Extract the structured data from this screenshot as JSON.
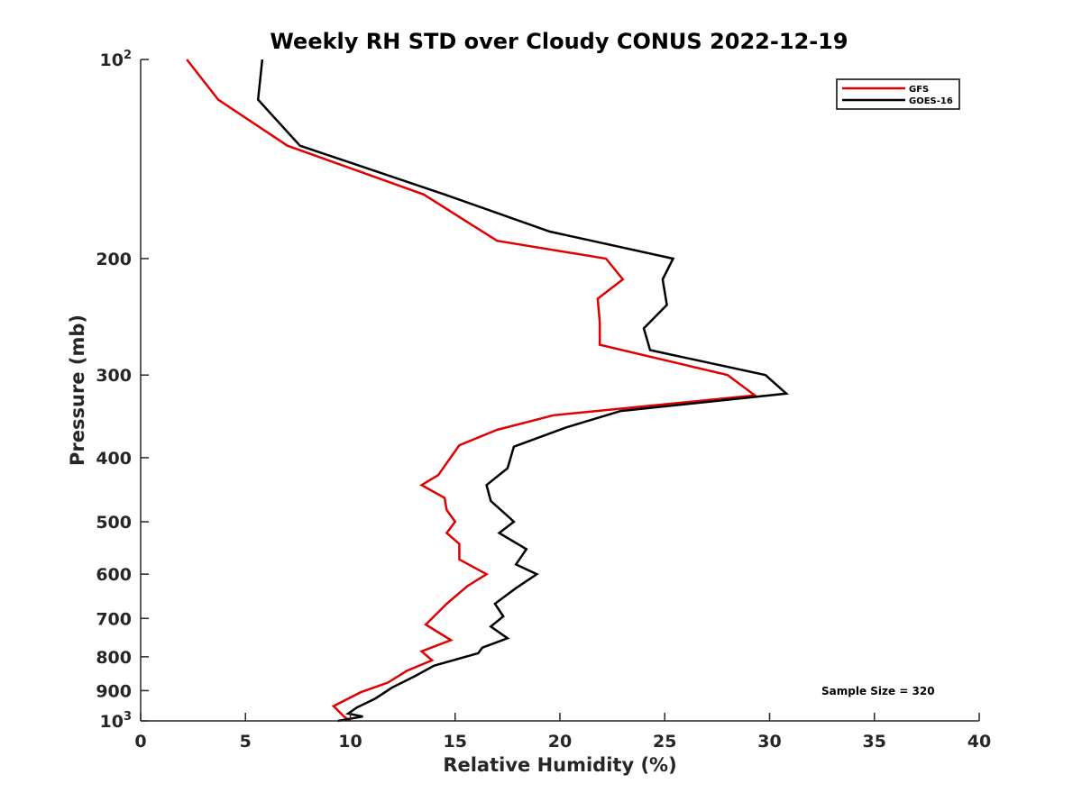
{
  "chart_data": {
    "type": "line",
    "title": "Weekly RH STD over Cloudy CONUS 2022-12-19",
    "xlabel": "Relative Humidity (%)",
    "ylabel": "Pressure (mb)",
    "xlim": [
      0,
      40
    ],
    "ylim": [
      100,
      1000
    ],
    "yscale": "log",
    "y_reversed": true,
    "grid": false,
    "legend_position": "top-right",
    "x_ticks": [
      {
        "value": 0,
        "label": "0"
      },
      {
        "value": 5,
        "label": "5"
      },
      {
        "value": 10,
        "label": "10"
      },
      {
        "value": 15,
        "label": "15"
      },
      {
        "value": 20,
        "label": "20"
      },
      {
        "value": 25,
        "label": "25"
      },
      {
        "value": 30,
        "label": "30"
      },
      {
        "value": 35,
        "label": "35"
      },
      {
        "value": 40,
        "label": "40"
      }
    ],
    "y_ticks": [
      {
        "value": 100,
        "base": "10",
        "exp": "2"
      },
      {
        "value": 200,
        "base": "200",
        "exp": ""
      },
      {
        "value": 300,
        "base": "300",
        "exp": ""
      },
      {
        "value": 400,
        "base": "400",
        "exp": ""
      },
      {
        "value": 500,
        "base": "500",
        "exp": ""
      },
      {
        "value": 600,
        "base": "600",
        "exp": ""
      },
      {
        "value": 700,
        "base": "700",
        "exp": ""
      },
      {
        "value": 800,
        "base": "800",
        "exp": ""
      },
      {
        "value": 900,
        "base": "900",
        "exp": ""
      },
      {
        "value": 1000,
        "base": "10",
        "exp": "3"
      }
    ],
    "series": [
      {
        "name": "GFS",
        "color": "#e00000",
        "points": [
          [
            2.2,
            100
          ],
          [
            3.7,
            115
          ],
          [
            7.0,
            135
          ],
          [
            13.5,
            160
          ],
          [
            17.0,
            188
          ],
          [
            22.2,
            200
          ],
          [
            23.0,
            215
          ],
          [
            21.8,
            230
          ],
          [
            21.9,
            250
          ],
          [
            21.9,
            270
          ],
          [
            28.0,
            300
          ],
          [
            29.3,
            322
          ],
          [
            19.7,
            345
          ],
          [
            17.0,
            363
          ],
          [
            15.2,
            383
          ],
          [
            14.2,
            425
          ],
          [
            13.4,
            440
          ],
          [
            14.5,
            460
          ],
          [
            14.6,
            480
          ],
          [
            15.0,
            500
          ],
          [
            14.6,
            520
          ],
          [
            15.2,
            540
          ],
          [
            15.2,
            570
          ],
          [
            16.5,
            600
          ],
          [
            15.6,
            625
          ],
          [
            14.6,
            665
          ],
          [
            13.6,
            715
          ],
          [
            14.8,
            755
          ],
          [
            13.4,
            785
          ],
          [
            13.9,
            810
          ],
          [
            12.7,
            840
          ],
          [
            11.8,
            875
          ],
          [
            10.5,
            905
          ],
          [
            9.2,
            950
          ],
          [
            9.7,
            985
          ],
          [
            10.0,
            1000
          ]
        ]
      },
      {
        "name": "GOES-16",
        "color": "#000000",
        "points": [
          [
            5.8,
            100
          ],
          [
            5.6,
            115
          ],
          [
            7.6,
            135
          ],
          [
            14.5,
            160
          ],
          [
            19.5,
            182
          ],
          [
            25.4,
            200
          ],
          [
            24.9,
            215
          ],
          [
            25.1,
            235
          ],
          [
            24.0,
            255
          ],
          [
            24.3,
            275
          ],
          [
            29.8,
            300
          ],
          [
            30.8,
            320
          ],
          [
            22.9,
            340
          ],
          [
            20.3,
            360
          ],
          [
            17.8,
            385
          ],
          [
            17.5,
            415
          ],
          [
            16.5,
            440
          ],
          [
            16.7,
            465
          ],
          [
            17.5,
            490
          ],
          [
            17.8,
            500
          ],
          [
            17.1,
            520
          ],
          [
            18.4,
            550
          ],
          [
            17.9,
            580
          ],
          [
            18.9,
            600
          ],
          [
            17.9,
            630
          ],
          [
            16.9,
            665
          ],
          [
            17.3,
            695
          ],
          [
            16.7,
            720
          ],
          [
            17.5,
            750
          ],
          [
            16.3,
            775
          ],
          [
            16.1,
            790
          ],
          [
            14.0,
            825
          ],
          [
            13.1,
            855
          ],
          [
            12.0,
            890
          ],
          [
            11.2,
            925
          ],
          [
            10.3,
            955
          ],
          [
            9.9,
            975
          ],
          [
            10.6,
            985
          ],
          [
            9.4,
            1000
          ]
        ]
      }
    ],
    "annotation": "Sample Size = 320"
  }
}
